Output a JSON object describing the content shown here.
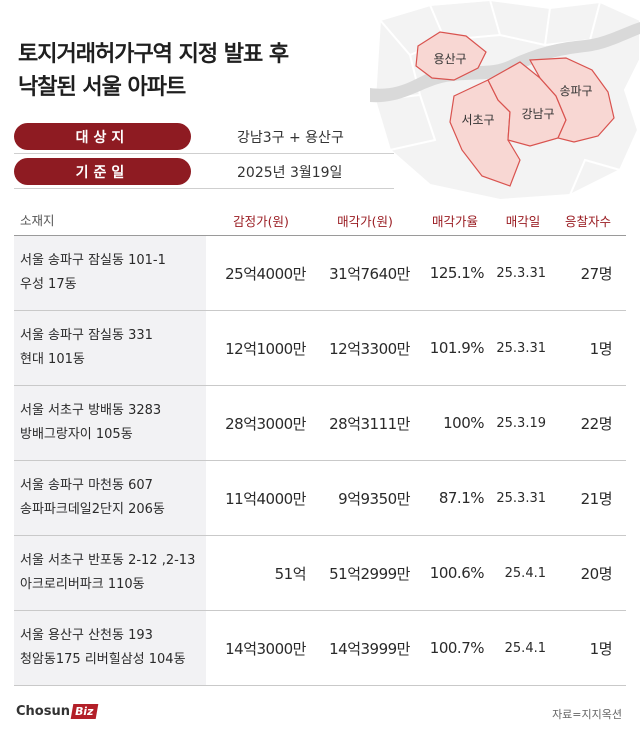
{
  "title": {
    "line1": "토지거래허가구역 지정 발표 후",
    "line2": "낙찰된 서울 아파트"
  },
  "map": {
    "districts": [
      "용산구",
      "서초구",
      "강남구",
      "송파구"
    ],
    "highlight_color": "#f8d7d3",
    "border_color": "#d9534f"
  },
  "info": {
    "target_label": "대상지",
    "target_value": "강남3구 + 용산구",
    "date_label": "기준일",
    "date_value": "2025년 3월19일"
  },
  "table": {
    "headers": [
      "소재지",
      "감정가(원)",
      "매각가(원)",
      "매각가율",
      "매각일",
      "응찰자수"
    ],
    "rows": [
      {
        "addr1": "서울 송파구 잠실동 101-1",
        "addr2": "우성 17동",
        "appraisal": "25억4000만",
        "sale": "31억7640만",
        "rate": "125.1%",
        "date": "25.3.31",
        "bidders": "27명"
      },
      {
        "addr1": "서울 송파구 잠실동 331",
        "addr2": "현대 101동",
        "appraisal": "12억1000만",
        "sale": "12억3300만",
        "rate": "101.9%",
        "date": "25.3.31",
        "bidders": "1명"
      },
      {
        "addr1": "서울 서초구 방배동 3283",
        "addr2": "방배그랑자이 105동",
        "appraisal": "28억3000만",
        "sale": "28억3111만",
        "rate": "100%",
        "date": "25.3.19",
        "bidders": "22명"
      },
      {
        "addr1": "서울 송파구 마천동 607",
        "addr2": "송파파크데일2단지 206동",
        "appraisal": "11억4000만",
        "sale": "9억9350만",
        "rate": "87.1%",
        "date": "25.3.31",
        "bidders": "21명"
      },
      {
        "addr1": "서울 서초구 반포동 2-12 ,2-13",
        "addr2": "아크로리버파크 110동",
        "appraisal": "51억",
        "sale": "51억2999만",
        "rate": "100.6%",
        "date": "25.4.1",
        "bidders": "20명"
      },
      {
        "addr1": "서울 용산구 산천동 193",
        "addr2": "청암동175 리버힐삼성 104동",
        "appraisal": "14억3000만",
        "sale": "14억3999만",
        "rate": "100.7%",
        "date": "25.4.1",
        "bidders": "1명"
      }
    ]
  },
  "footer": {
    "logo_text": "Chosun",
    "logo_badge": "Biz",
    "source": "자료=지지옥션"
  }
}
